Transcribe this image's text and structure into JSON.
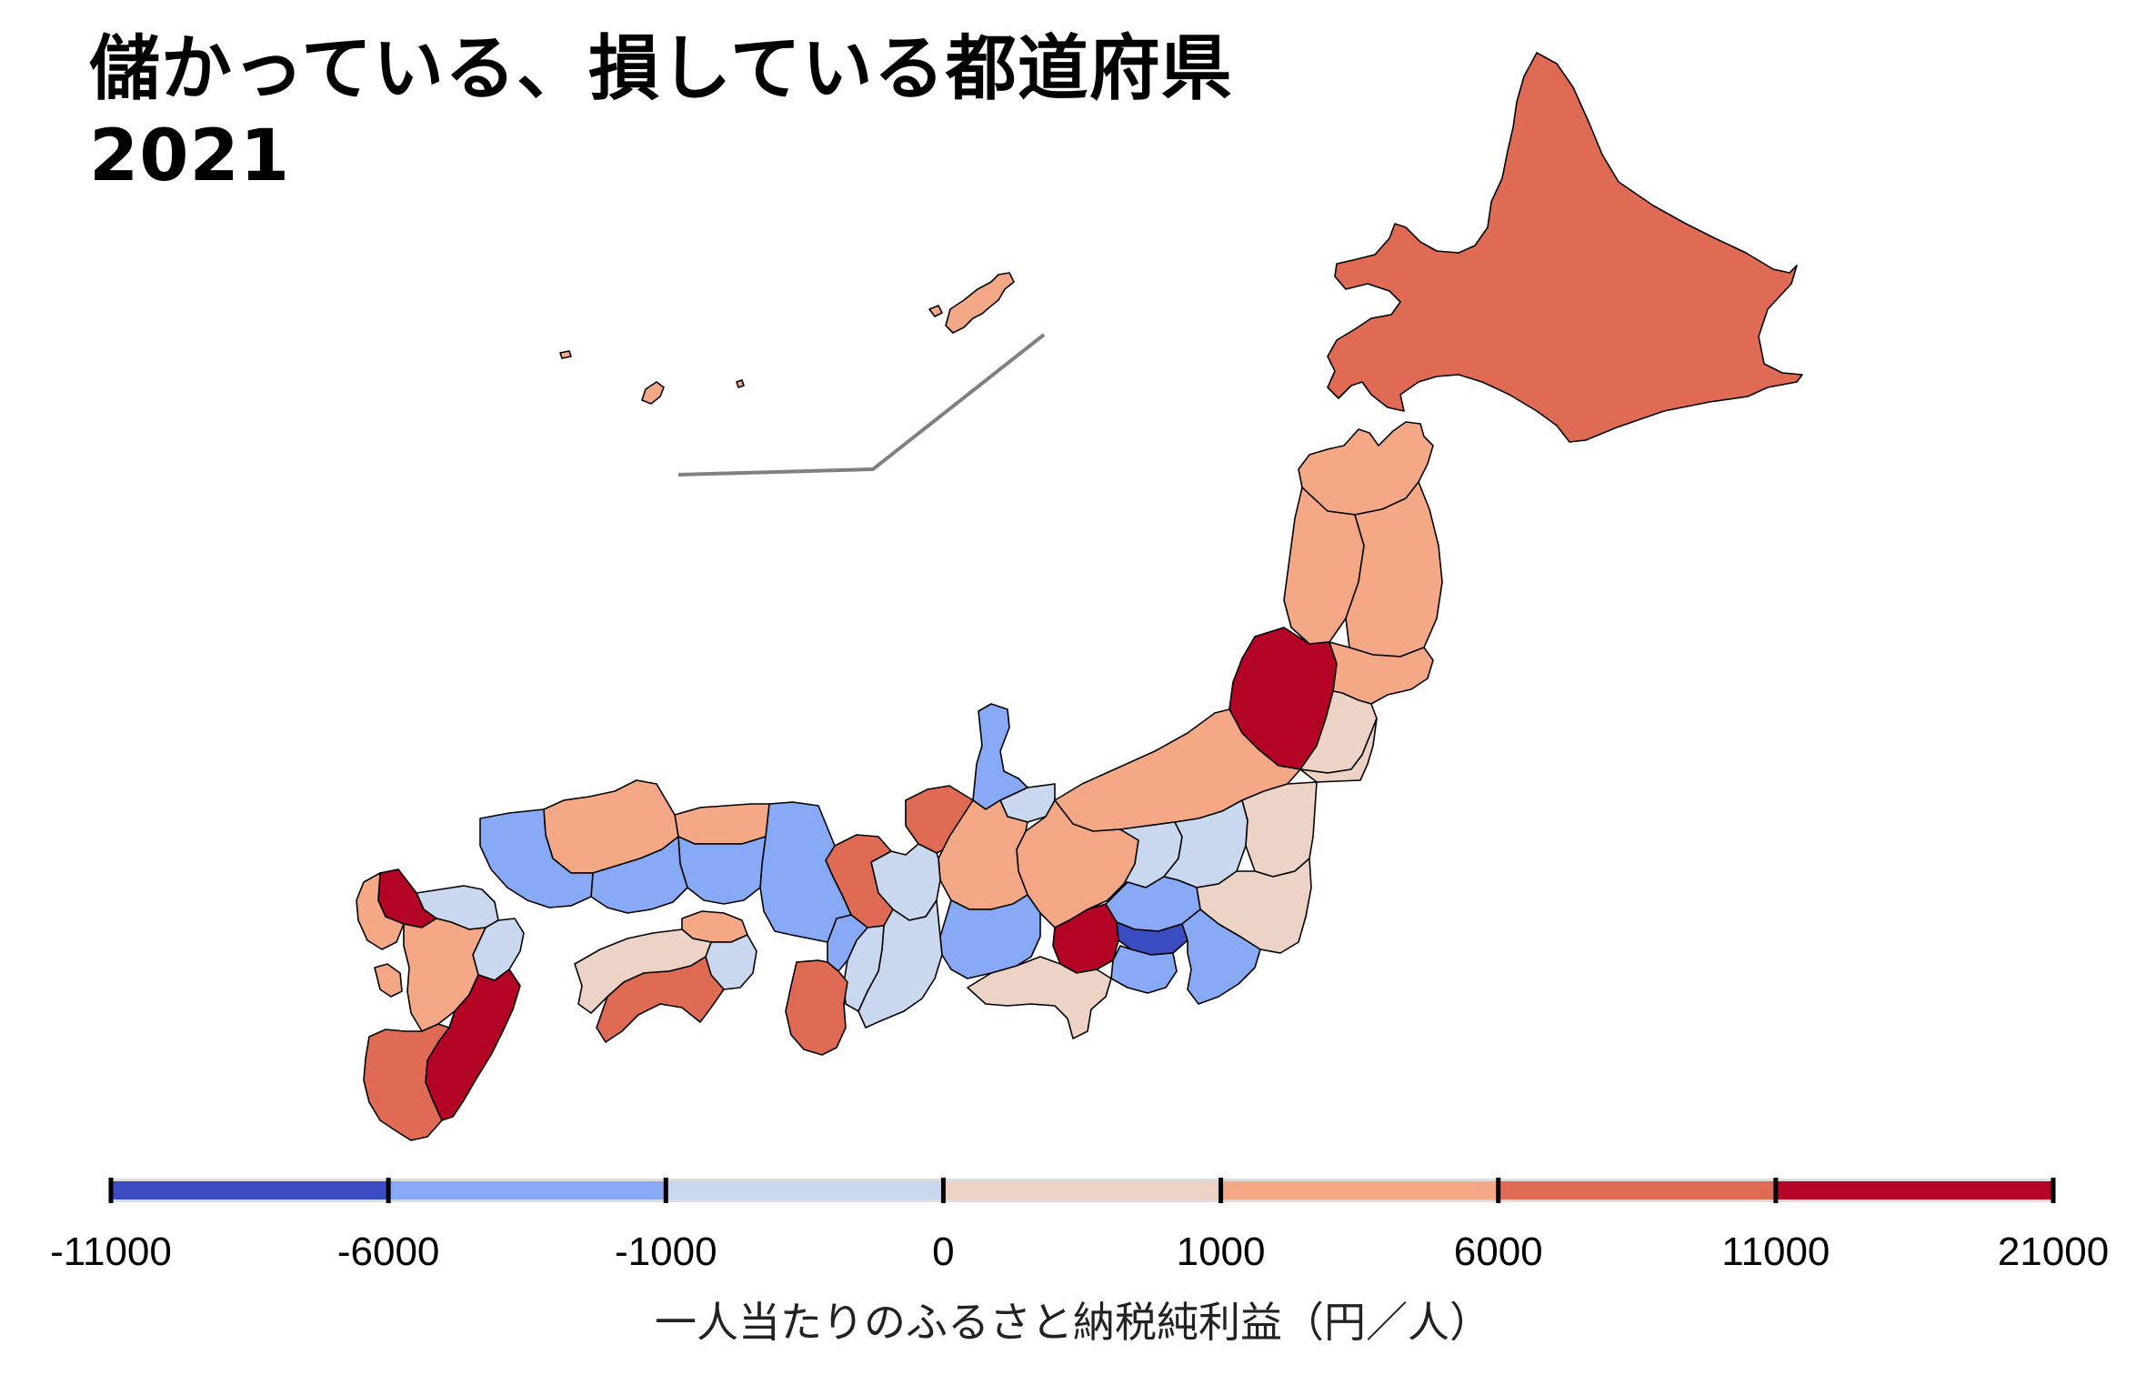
{
  "title": {
    "line1": "儲かっている、損している都道府県",
    "line2": "2021"
  },
  "colors": {
    "bin_0": "#3b4cc0",
    "bin_1": "#88a9f5",
    "bin_2": "#c9d8ef",
    "bin_3": "#ecd3c5",
    "bin_4": "#f4a886",
    "bin_5": "#e06b55",
    "bin_6": "#b40426",
    "border": "#000000",
    "inset_line": "#808080"
  },
  "legend": {
    "boundaries": [
      "-11000",
      "-6000",
      "-1000",
      "0",
      "1000",
      "6000",
      "11000",
      "21000"
    ],
    "label": "一人当たりのふるさと納税純利益（円／人）"
  },
  "prefectures": [
    {
      "name": "北海道",
      "bin": 5
    },
    {
      "name": "青森",
      "bin": 4
    },
    {
      "name": "岩手",
      "bin": 4
    },
    {
      "name": "宮城",
      "bin": 4
    },
    {
      "name": "秋田",
      "bin": 4
    },
    {
      "name": "山形",
      "bin": 6
    },
    {
      "name": "福島",
      "bin": 3
    },
    {
      "name": "新潟",
      "bin": 4
    },
    {
      "name": "茨城",
      "bin": 3
    },
    {
      "name": "栃木",
      "bin": 2
    },
    {
      "name": "群馬",
      "bin": 2
    },
    {
      "name": "埼玉",
      "bin": 1
    },
    {
      "name": "千葉",
      "bin": 1
    },
    {
      "name": "東京",
      "bin": 0
    },
    {
      "name": "神奈川",
      "bin": 1
    },
    {
      "name": "山梨",
      "bin": 6
    },
    {
      "name": "長野",
      "bin": 4
    },
    {
      "name": "静岡",
      "bin": 3
    },
    {
      "name": "富山",
      "bin": 2
    },
    {
      "name": "石川",
      "bin": 1
    },
    {
      "name": "福井",
      "bin": 5
    },
    {
      "name": "岐阜",
      "bin": 4
    },
    {
      "name": "愛知",
      "bin": 1
    },
    {
      "name": "三重",
      "bin": 2
    },
    {
      "name": "滋賀",
      "bin": 2
    },
    {
      "name": "京都",
      "bin": 5
    },
    {
      "name": "大阪",
      "bin": 1
    },
    {
      "name": "兵庫",
      "bin": 1
    },
    {
      "name": "奈良",
      "bin": 2
    },
    {
      "name": "和歌山",
      "bin": 5
    },
    {
      "name": "鳥取",
      "bin": 4
    },
    {
      "name": "島根",
      "bin": 4
    },
    {
      "name": "岡山",
      "bin": 1
    },
    {
      "name": "広島",
      "bin": 1
    },
    {
      "name": "山口",
      "bin": 1
    },
    {
      "name": "徳島",
      "bin": 2
    },
    {
      "name": "香川",
      "bin": 4
    },
    {
      "name": "愛媛",
      "bin": 3
    },
    {
      "name": "高知",
      "bin": 5
    },
    {
      "name": "福岡",
      "bin": 2
    },
    {
      "name": "佐賀",
      "bin": 6
    },
    {
      "name": "長崎",
      "bin": 4
    },
    {
      "name": "熊本",
      "bin": 4
    },
    {
      "name": "大分",
      "bin": 2
    },
    {
      "name": "宮崎",
      "bin": 6
    },
    {
      "name": "鹿児島",
      "bin": 5
    },
    {
      "name": "沖縄",
      "bin": 4
    }
  ]
}
